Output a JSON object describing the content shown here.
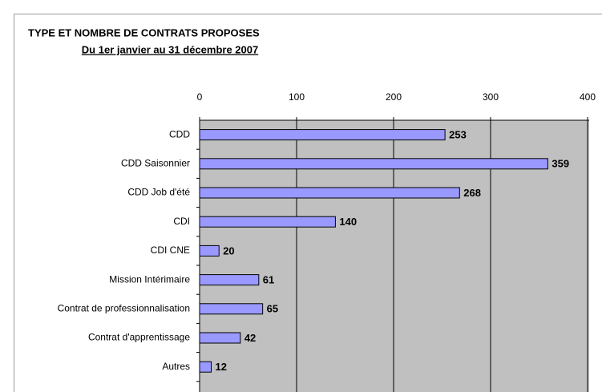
{
  "chart_data": {
    "type": "bar",
    "orientation": "horizontal",
    "title": "TYPE ET NOMBRE DE CONTRATS PROPOSES",
    "subtitle": "Du 1er janvier au 31 décembre 2007",
    "categories": [
      "CDD",
      "CDD Saisonnier",
      "CDD Job d'été",
      "CDI",
      "CDI CNE",
      "Mission Intérimaire",
      "Contrat de professionnalisation",
      "Contrat d'apprentissage",
      "Autres"
    ],
    "values": [
      253,
      359,
      268,
      140,
      20,
      61,
      65,
      42,
      12
    ],
    "color": "#9999ff",
    "xlim": [
      0,
      400
    ],
    "xticks": [
      0,
      100,
      200,
      300,
      400
    ],
    "grid": true
  }
}
